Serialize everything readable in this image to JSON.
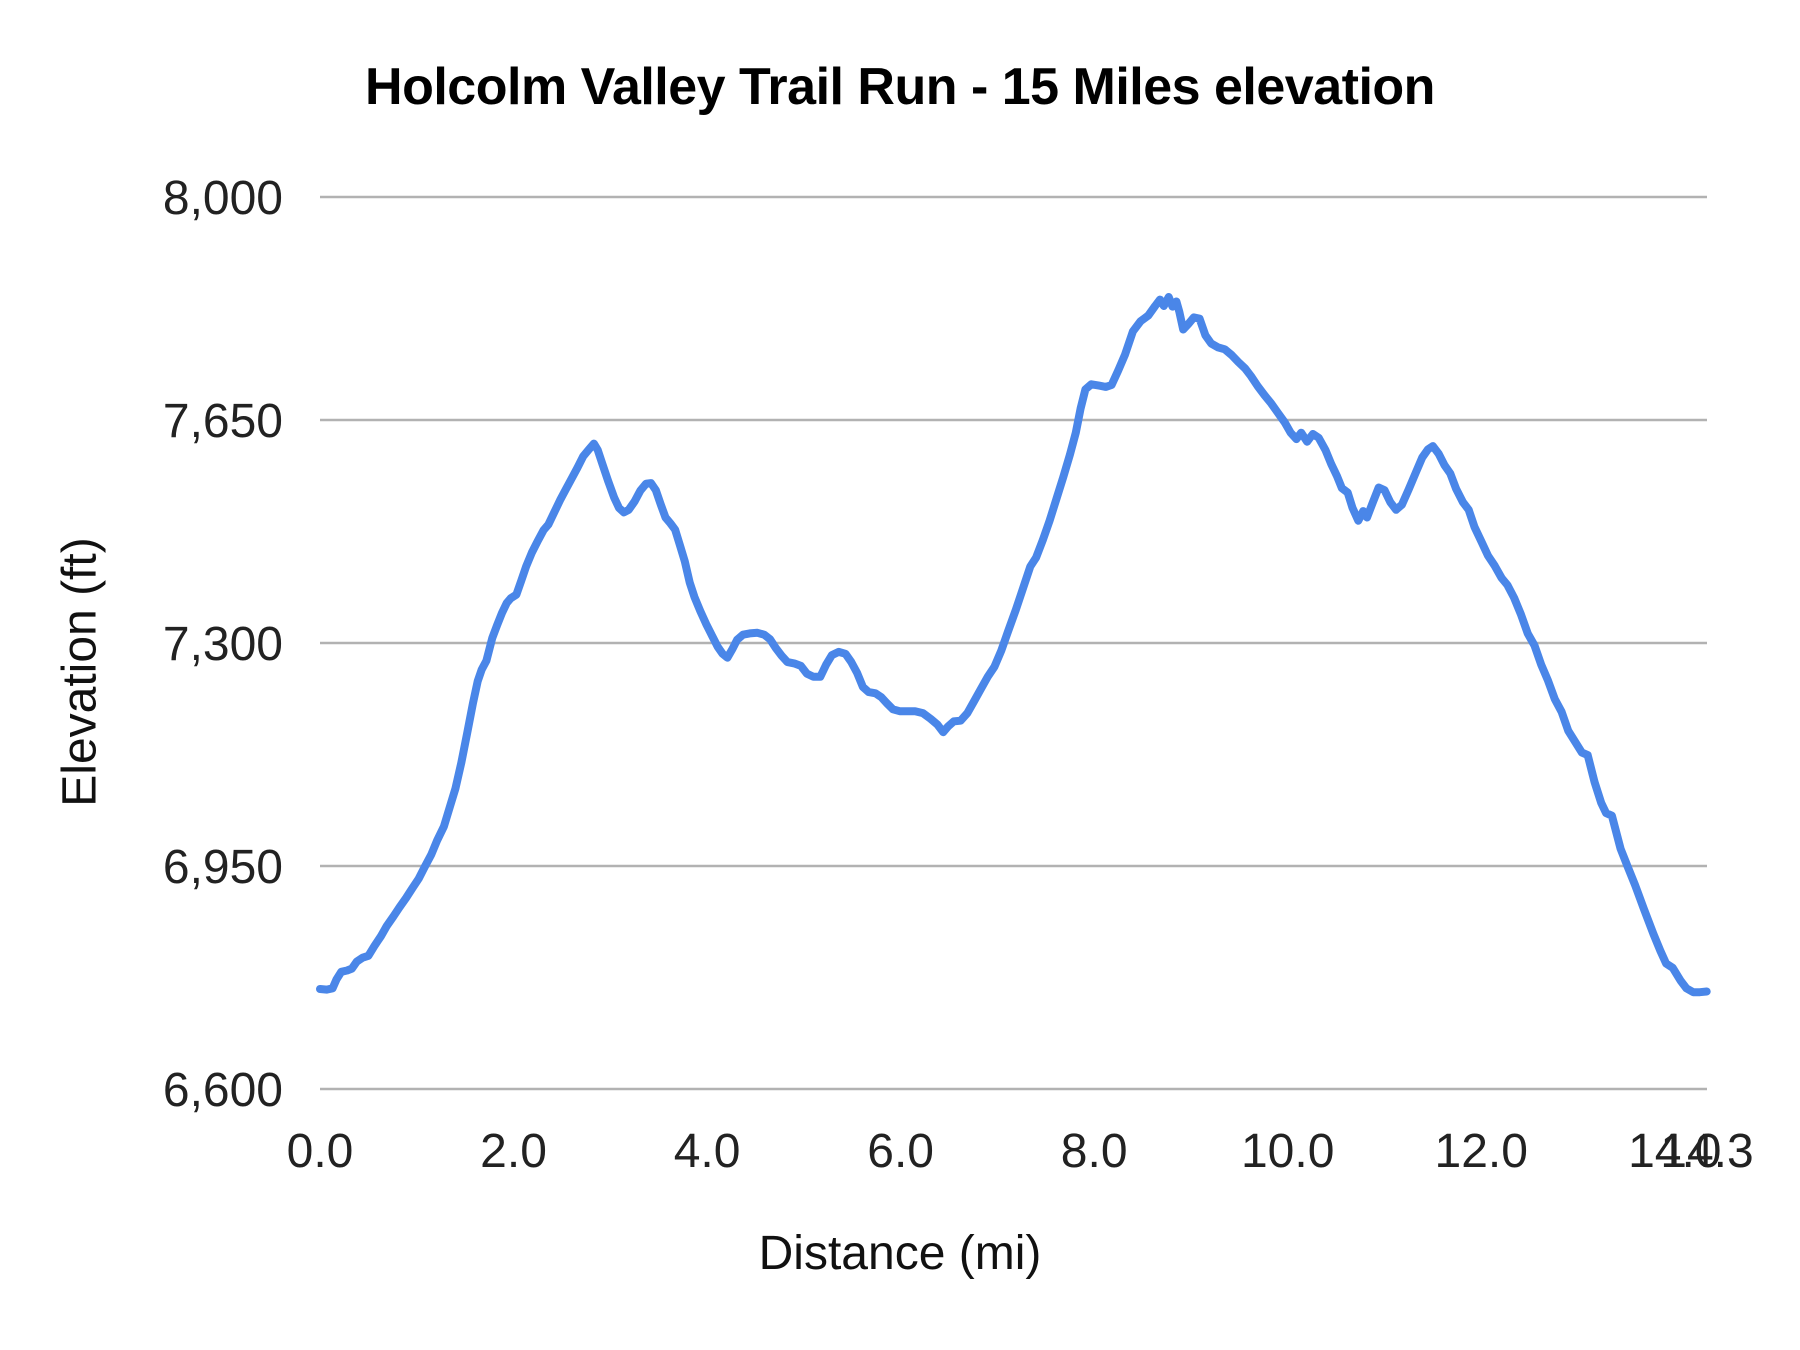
{
  "chart": {
    "title": "Holcolm Valley Trail Run - 15 Miles elevation",
    "xlabel": "Distance (mi)",
    "ylabel": "Elevation (ft)"
  },
  "chart_data": {
    "type": "line",
    "title": "Holcolm Valley Trail Run - 15 Miles elevation",
    "xlabel": "Distance (mi)",
    "ylabel": "Elevation (ft)",
    "xlim": [
      0,
      14.333
    ],
    "ylim": [
      6600,
      8000
    ],
    "grid": "horizontal",
    "line_color": "#4a86e8",
    "gridline_color": "#b2b2b2",
    "xticks": {
      "values": [
        0,
        2,
        4,
        6,
        8,
        10,
        12,
        14,
        14.333
      ],
      "labels": [
        "0.0",
        "2.0",
        "4.0",
        "6.0",
        "8.0",
        "10.0",
        "12.0",
        "14.0",
        "14.3"
      ]
    },
    "yticks": {
      "values": [
        6600,
        6950,
        7300,
        7650,
        8000
      ],
      "labels": [
        "6,600",
        "6,950",
        "7,300",
        "7,650",
        "8,000"
      ]
    },
    "x": [
      0.0,
      0.07,
      0.13,
      0.17,
      0.22,
      0.28,
      0.33,
      0.38,
      0.44,
      0.5,
      0.56,
      0.63,
      0.69,
      0.76,
      0.82,
      0.89,
      0.95,
      1.02,
      1.08,
      1.15,
      1.21,
      1.28,
      1.34,
      1.4,
      1.46,
      1.52,
      1.58,
      1.63,
      1.67,
      1.72,
      1.78,
      1.83,
      1.88,
      1.93,
      1.97,
      2.03,
      2.08,
      2.13,
      2.19,
      2.25,
      2.31,
      2.36,
      2.42,
      2.48,
      2.54,
      2.6,
      2.66,
      2.72,
      2.78,
      2.83,
      2.87,
      2.92,
      2.98,
      3.04,
      3.09,
      3.14,
      3.19,
      3.25,
      3.31,
      3.37,
      3.42,
      3.47,
      3.52,
      3.57,
      3.62,
      3.67,
      3.72,
      3.77,
      3.82,
      3.87,
      3.93,
      3.99,
      4.05,
      4.11,
      4.16,
      4.21,
      4.26,
      4.31,
      4.37,
      4.44,
      4.52,
      4.59,
      4.65,
      4.71,
      4.77,
      4.83,
      4.9,
      4.97,
      5.03,
      5.1,
      5.17,
      5.23,
      5.29,
      5.36,
      5.43,
      5.49,
      5.55,
      5.61,
      5.67,
      5.74,
      5.8,
      5.86,
      5.92,
      5.99,
      6.07,
      6.15,
      6.23,
      6.31,
      6.38,
      6.44,
      6.49,
      6.55,
      6.62,
      6.69,
      6.76,
      6.83,
      6.9,
      6.97,
      7.04,
      7.11,
      7.19,
      7.27,
      7.34,
      7.4,
      7.47,
      7.54,
      7.61,
      7.68,
      7.75,
      7.81,
      7.86,
      7.91,
      7.97,
      8.05,
      8.12,
      8.18,
      8.25,
      8.32,
      8.4,
      8.48,
      8.56,
      8.63,
      8.68,
      8.72,
      8.77,
      8.81,
      8.85,
      8.88,
      8.92,
      8.97,
      9.03,
      9.09,
      9.15,
      9.21,
      9.28,
      9.35,
      9.42,
      9.49,
      9.56,
      9.62,
      9.69,
      9.76,
      9.83,
      9.9,
      9.97,
      10.03,
      10.09,
      10.14,
      10.2,
      10.26,
      10.32,
      10.39,
      10.45,
      10.51,
      10.56,
      10.62,
      10.67,
      10.73,
      10.78,
      10.82,
      10.88,
      10.94,
      11.0,
      11.06,
      11.12,
      11.18,
      11.25,
      11.32,
      11.39,
      11.45,
      11.5,
      11.56,
      11.62,
      11.68,
      11.74,
      11.81,
      11.87,
      11.93,
      12.0,
      12.07,
      12.14,
      12.21,
      12.27,
      12.34,
      12.41,
      12.48,
      12.55,
      12.62,
      12.69,
      12.76,
      12.83,
      12.9,
      12.97,
      13.04,
      13.1,
      13.17,
      13.24,
      13.29,
      13.35,
      13.44,
      13.51,
      13.59,
      13.68,
      13.78,
      13.85,
      13.91,
      13.98,
      14.06,
      14.12,
      14.19,
      14.26,
      14.33
    ],
    "y": [
      6757,
      6756,
      6758,
      6772,
      6784,
      6786,
      6789,
      6800,
      6806,
      6809,
      6824,
      6840,
      6856,
      6871,
      6885,
      6900,
      6914,
      6930,
      6948,
      6968,
      6990,
      7012,
      7042,
      7072,
      7112,
      7158,
      7205,
      7240,
      7258,
      7272,
      7308,
      7328,
      7347,
      7363,
      7370,
      7376,
      7398,
      7420,
      7442,
      7460,
      7477,
      7486,
      7505,
      7524,
      7541,
      7558,
      7575,
      7593,
      7604,
      7613,
      7603,
      7580,
      7553,
      7528,
      7512,
      7505,
      7509,
      7522,
      7539,
      7550,
      7551,
      7540,
      7518,
      7497,
      7488,
      7478,
      7453,
      7428,
      7395,
      7372,
      7350,
      7330,
      7312,
      7294,
      7283,
      7277,
      7290,
      7305,
      7313,
      7315,
      7316,
      7313,
      7306,
      7292,
      7280,
      7270,
      7268,
      7264,
      7252,
      7247,
      7247,
      7266,
      7281,
      7286,
      7283,
      7270,
      7253,
      7231,
      7223,
      7221,
      7215,
      7205,
      7196,
      7193,
      7193,
      7193,
      7190,
      7181,
      7172,
      7160,
      7169,
      7177,
      7178,
      7190,
      7209,
      7228,
      7247,
      7263,
      7288,
      7318,
      7352,
      7388,
      7420,
      7434,
      7462,
      7492,
      7526,
      7560,
      7596,
      7630,
      7668,
      7698,
      7706,
      7704,
      7702,
      7705,
      7728,
      7753,
      7789,
      7805,
      7814,
      7829,
      7839,
      7829,
      7843,
      7828,
      7836,
      7820,
      7792,
      7800,
      7811,
      7809,
      7783,
      7770,
      7764,
      7761,
      7752,
      7741,
      7731,
      7719,
      7703,
      7689,
      7676,
      7661,
      7646,
      7630,
      7620,
      7630,
      7616,
      7628,
      7622,
      7603,
      7581,
      7562,
      7543,
      7536,
      7512,
      7492,
      7507,
      7497,
      7521,
      7544,
      7540,
      7521,
      7509,
      7517,
      7541,
      7566,
      7591,
      7604,
      7609,
      7597,
      7579,
      7566,
      7542,
      7521,
      7509,
      7482,
      7460,
      7437,
      7421,
      7402,
      7391,
      7371,
      7345,
      7315,
      7296,
      7266,
      7241,
      7212,
      7192,
      7162,
      7145,
      7128,
      7124,
      7082,
      7049,
      7033,
      7029,
      6977,
      6950,
      6920,
      6883,
      6843,
      6817,
      6797,
      6790,
      6770,
      6758,
      6752,
      6752,
      6753
    ]
  }
}
